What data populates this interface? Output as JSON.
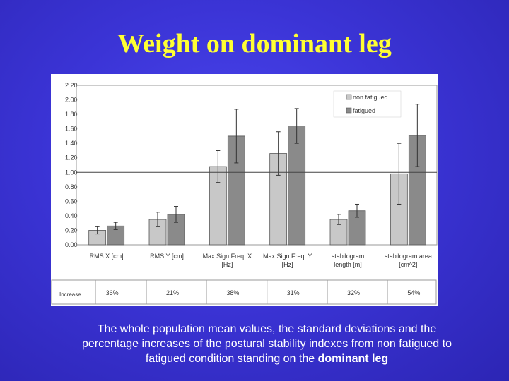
{
  "title": "Weight on dominant leg",
  "caption": {
    "text": "The whole population mean values, the standard deviations and the percentage increases of the postural stability indexes from non fatigued to fatigued condition standing on the",
    "bold": "dominant leg"
  },
  "colors": {
    "background": "#3b34d6",
    "title": "#ffff33",
    "non_fatigued_bar": "#c8c8c8",
    "fatigued_bar": "#8a8a8a"
  },
  "chart_data": {
    "type": "bar",
    "categories": [
      [
        "RMS X [cm]"
      ],
      [
        "RMS Y [cm]"
      ],
      [
        "Max.Sign.Freq. X",
        "[Hz]"
      ],
      [
        "Max.Sign.Freq. Y",
        "[Hz]"
      ],
      [
        "stabilogram",
        "length [m]"
      ],
      [
        "stabilogram area",
        "[cm^2]"
      ]
    ],
    "series": [
      {
        "name": "non fatigued",
        "values": [
          0.2,
          0.35,
          1.08,
          1.26,
          0.35,
          0.98
        ],
        "errors": [
          0.05,
          0.1,
          0.22,
          0.3,
          0.07,
          0.42
        ]
      },
      {
        "name": "fatigued",
        "values": [
          0.26,
          0.42,
          1.5,
          1.64,
          0.47,
          1.51
        ],
        "errors": [
          0.05,
          0.11,
          0.37,
          0.24,
          0.09,
          0.43
        ]
      }
    ],
    "yticks": [
      "0.00",
      "0.20",
      "0.40",
      "0.60",
      "0.80",
      "1.00",
      "1.20",
      "1.40",
      "1.60",
      "1.80",
      "2.00",
      "2.20"
    ],
    "ylim": [
      0,
      2.2
    ],
    "reference_line": 1.0,
    "legend_position": "top-right",
    "grid": false,
    "increase_row": {
      "label": "Increase",
      "values": [
        "36%",
        "21%",
        "38%",
        "31%",
        "32%",
        "54%"
      ]
    }
  }
}
